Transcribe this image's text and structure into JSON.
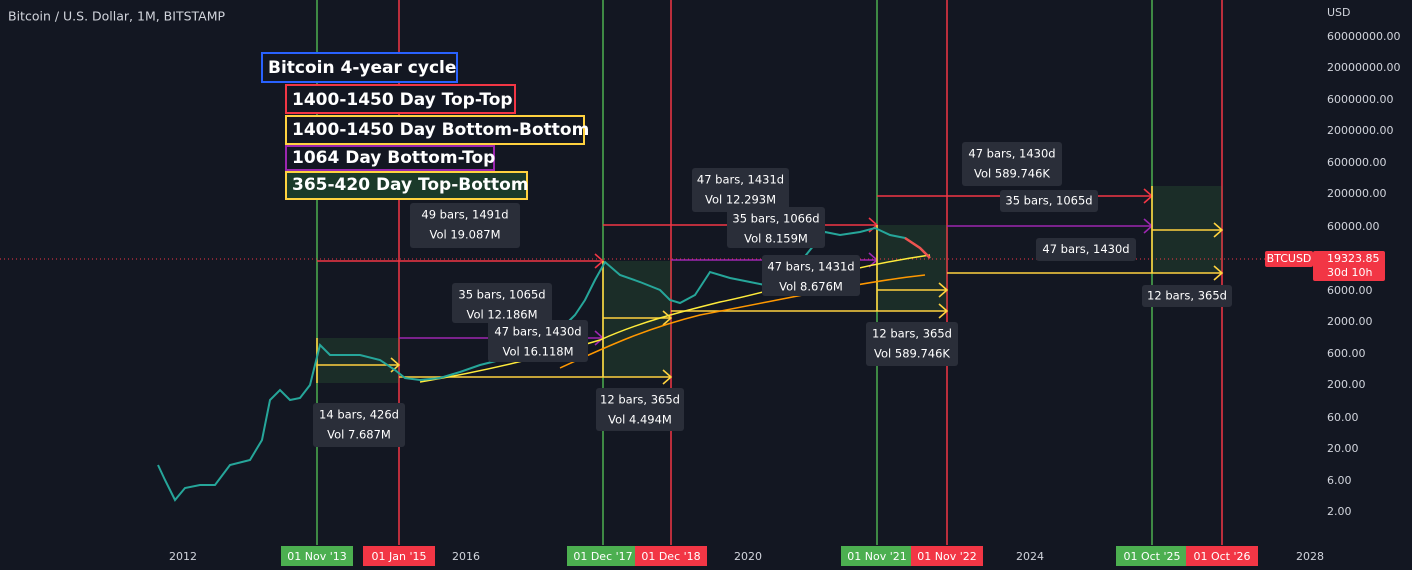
{
  "header": {
    "title": "Bitcoin / U.S. Dollar, 1M, BITSTAMP"
  },
  "legend": [
    "Bitcoin 4-year cycle",
    "1400-1450 Day Top-Top",
    "1400-1450 Day Bottom-Bottom",
    "1064 Day Bottom-Top",
    "365-420 Day Top-Bottom"
  ],
  "measurements": [
    [
      "49 bars, 1491d",
      "Vol 19.087M"
    ],
    [
      "14 bars, 426d",
      "Vol 7.687M"
    ],
    [
      "35 bars, 1065d",
      "Vol 12.186M"
    ],
    [
      "47 bars, 1430d",
      "Vol 16.118M"
    ],
    [
      "12 bars, 365d",
      "Vol 4.494M"
    ],
    [
      "47 bars, 1431d",
      "Vol 12.293M"
    ],
    [
      "35 bars, 1066d",
      "Vol 8.159M"
    ],
    [
      "47 bars, 1431d",
      "Vol 8.676M"
    ],
    [
      "12 bars, 365d",
      "Vol 589.746K"
    ],
    [
      "47 bars, 1430d",
      "Vol 589.746K"
    ],
    [
      "35 bars, 1065d"
    ],
    [
      "47 bars, 1430d"
    ],
    [
      "12 bars, 365d"
    ]
  ],
  "price_axis": {
    "unit": "USD",
    "labels": [
      "60000000.00",
      "20000000.00",
      "6000000.00",
      "2000000.00",
      "600000.00",
      "200000.00",
      "60000.00",
      "6000.00",
      "2000.00",
      "600.00",
      "200.00",
      "60.00",
      "20.00",
      "6.00",
      "2.00"
    ]
  },
  "price_tag": {
    "symbol": "BTCUSD",
    "price": "19323.85",
    "countdown": "30d 10h"
  },
  "time_axis": {
    "years": [
      "2012",
      "2016",
      "2020",
      "2024",
      "2028"
    ],
    "cycle_dates": [
      {
        "label": "01 Nov '13",
        "color": "#4caf50"
      },
      {
        "label": "01 Jan '15",
        "color": "#f23645"
      },
      {
        "label": "01 Dec '17",
        "color": "#4caf50"
      },
      {
        "label": "01 Dec '18",
        "color": "#f23645"
      },
      {
        "label": "01 Nov '21",
        "color": "#4caf50"
      },
      {
        "label": "01 Nov '22",
        "color": "#f23645"
      },
      {
        "label": "01 Oct '25",
        "color": "#4caf50"
      },
      {
        "label": "01 Oct '26",
        "color": "#f23645"
      }
    ]
  }
}
